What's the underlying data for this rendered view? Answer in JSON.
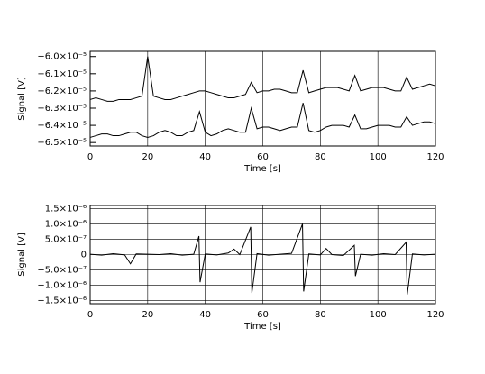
{
  "chart_data": [
    {
      "type": "line",
      "xlabel": "Time [s]",
      "ylabel": "Signal [V]",
      "x": [
        0,
        2,
        4,
        6,
        8,
        10,
        12,
        14,
        16,
        18,
        20,
        22,
        24,
        26,
        28,
        30,
        32,
        34,
        36,
        38,
        40,
        42,
        44,
        46,
        48,
        50,
        52,
        54,
        56,
        58,
        60,
        62,
        64,
        66,
        68,
        70,
        72,
        74,
        76,
        78,
        80,
        82,
        84,
        86,
        88,
        90,
        92,
        94,
        96,
        98,
        100,
        102,
        104,
        106,
        108,
        110,
        112,
        114,
        116,
        118,
        120
      ],
      "series": [
        {
          "color": "#000000",
          "values": [
            -6.25e-05,
            -6.24e-05,
            -6.25e-05,
            -6.26e-05,
            -6.26e-05,
            -6.25e-05,
            -6.25e-05,
            -6.25e-05,
            -6.24e-05,
            -6.23e-05,
            -6e-05,
            -6.23e-05,
            -6.24e-05,
            -6.25e-05,
            -6.25e-05,
            -6.24e-05,
            -6.23e-05,
            -6.22e-05,
            -6.21e-05,
            -6.2e-05,
            -6.2e-05,
            -6.21e-05,
            -6.22e-05,
            -6.23e-05,
            -6.24e-05,
            -6.24e-05,
            -6.23e-05,
            -6.22e-05,
            -6.15e-05,
            -6.21e-05,
            -6.2e-05,
            -6.2e-05,
            -6.19e-05,
            -6.19e-05,
            -6.2e-05,
            -6.21e-05,
            -6.21e-05,
            -6.08e-05,
            -6.21e-05,
            -6.2e-05,
            -6.19e-05,
            -6.18e-05,
            -6.18e-05,
            -6.18e-05,
            -6.19e-05,
            -6.2e-05,
            -6.11e-05,
            -6.2e-05,
            -6.19e-05,
            -6.18e-05,
            -6.18e-05,
            -6.18e-05,
            -6.19e-05,
            -6.2e-05,
            -6.2e-05,
            -6.12e-05,
            -6.19e-05,
            -6.18e-05,
            -6.17e-05,
            -6.16e-05,
            -6.17e-05
          ]
        },
        {
          "color": "#000000",
          "values": [
            -6.47e-05,
            -6.46e-05,
            -6.45e-05,
            -6.45e-05,
            -6.46e-05,
            -6.46e-05,
            -6.45e-05,
            -6.44e-05,
            -6.44e-05,
            -6.46e-05,
            -6.47e-05,
            -6.46e-05,
            -6.44e-05,
            -6.43e-05,
            -6.44e-05,
            -6.46e-05,
            -6.46e-05,
            -6.44e-05,
            -6.43e-05,
            -6.32e-05,
            -6.44e-05,
            -6.46e-05,
            -6.45e-05,
            -6.43e-05,
            -6.42e-05,
            -6.43e-05,
            -6.44e-05,
            -6.44e-05,
            -6.3e-05,
            -6.42e-05,
            -6.41e-05,
            -6.41e-05,
            -6.42e-05,
            -6.43e-05,
            -6.42e-05,
            -6.41e-05,
            -6.41e-05,
            -6.27e-05,
            -6.43e-05,
            -6.44e-05,
            -6.43e-05,
            -6.41e-05,
            -6.4e-05,
            -6.4e-05,
            -6.4e-05,
            -6.41e-05,
            -6.34e-05,
            -6.42e-05,
            -6.42e-05,
            -6.41e-05,
            -6.4e-05,
            -6.4e-05,
            -6.4e-05,
            -6.41e-05,
            -6.41e-05,
            -6.35e-05,
            -6.4e-05,
            -6.39e-05,
            -6.38e-05,
            -6.38e-05,
            -6.39e-05
          ]
        }
      ],
      "xlim": [
        0,
        120
      ],
      "xticks": [
        0,
        20,
        40,
        60,
        80,
        100,
        120
      ],
      "ylim": [
        -6.52e-05,
        -5.97e-05
      ],
      "yticks": [
        {
          "value": -6e-05,
          "label": "−6.0×10⁻⁵"
        },
        {
          "value": -6.1e-05,
          "label": "−6.1×10⁻⁵"
        },
        {
          "value": -6.2e-05,
          "label": "−6.2×10⁻⁵"
        },
        {
          "value": -6.3e-05,
          "label": "−6.3×10⁻⁵"
        },
        {
          "value": -6.4e-05,
          "label": "−6.4×10⁻⁵"
        },
        {
          "value": -6.5e-05,
          "label": "−6.5×10⁻⁵"
        }
      ],
      "xgrid": true,
      "ygrid": false
    },
    {
      "type": "line",
      "xlabel": "Time [s]",
      "ylabel": "Signal [V]",
      "x": [
        0,
        4,
        8,
        12,
        14,
        16,
        20,
        24,
        28,
        32,
        36,
        37.8,
        38.2,
        40,
        44,
        48,
        50,
        52,
        55.8,
        56.2,
        58,
        62,
        66,
        70,
        73.8,
        74.2,
        76,
        80,
        82,
        84,
        88,
        91.8,
        92.2,
        94,
        98,
        102,
        106,
        109.8,
        110.2,
        112,
        116,
        120
      ],
      "series": [
        {
          "color": "#000000",
          "values": [
            1e-08,
            -2e-08,
            3e-08,
            -1e-08,
            -3e-07,
            2e-08,
            1e-08,
            0,
            3e-08,
            -2e-08,
            1e-08,
            6e-07,
            -9e-07,
            2e-08,
            -1e-08,
            5e-08,
            1.8e-07,
            0,
            9e-07,
            -1.25e-06,
            3e-08,
            -2e-08,
            1e-08,
            4e-08,
            1e-06,
            -1.2e-06,
            2e-08,
            -1e-08,
            2e-07,
            0,
            -3e-08,
            3e-07,
            -7e-07,
            1e-08,
            -2e-08,
            3e-08,
            0,
            4e-07,
            -1.3e-06,
            2e-08,
            -1e-08,
            1e-08
          ]
        }
      ],
      "xlim": [
        0,
        120
      ],
      "xticks": [
        0,
        20,
        40,
        60,
        80,
        100,
        120
      ],
      "ylim": [
        -1.6e-06,
        1.6e-06
      ],
      "yticks": [
        {
          "value": 1.5e-06,
          "label": "1.5×10⁻⁶"
        },
        {
          "value": 1e-06,
          "label": "1.0×10⁻⁶"
        },
        {
          "value": 5e-07,
          "label": "5.0×10⁻⁷"
        },
        0,
        {
          "value": -5e-07,
          "label": "−5.0×10⁻⁷"
        },
        {
          "value": -1e-06,
          "label": "−1.0×10⁻⁶"
        },
        {
          "value": -1.5e-06,
          "label": "−1.5×10⁻⁶"
        }
      ],
      "xgrid": true,
      "ygrid": true
    }
  ]
}
